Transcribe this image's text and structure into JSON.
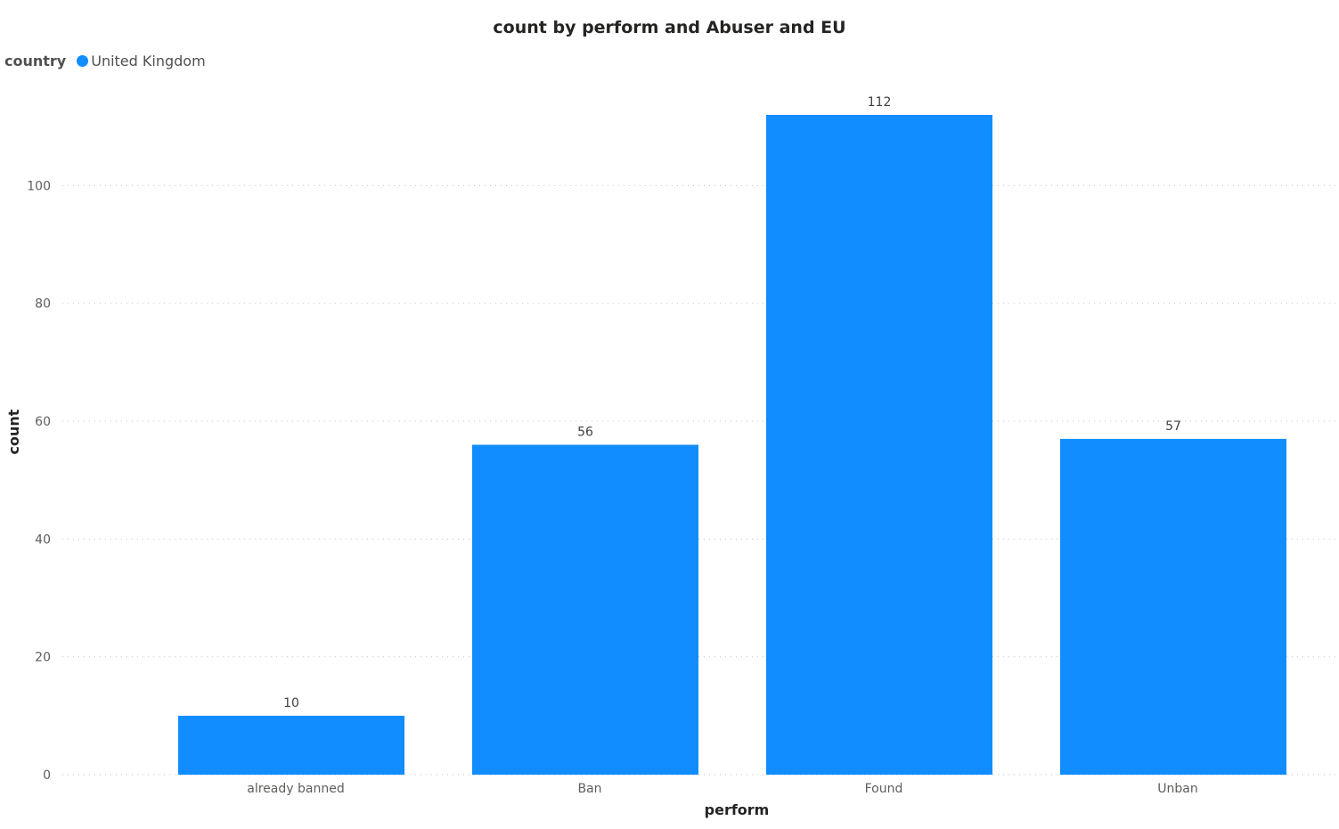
{
  "chart_data": {
    "type": "bar",
    "title": "count by perform and Abuser and EU",
    "xlabel": "perform",
    "ylabel": "count",
    "categories": [
      "already banned",
      "Ban",
      "Found",
      "Unban"
    ],
    "series": [
      {
        "name": "United Kingdom",
        "values": [
          10,
          56,
          112,
          57
        ],
        "color": "#118DFF"
      }
    ],
    "legend": {
      "title": "country",
      "position": "top-left"
    },
    "ylim": [
      0,
      112
    ],
    "yticks": [
      0,
      20,
      40,
      60,
      80,
      100
    ],
    "grid": true,
    "data_labels": true
  }
}
